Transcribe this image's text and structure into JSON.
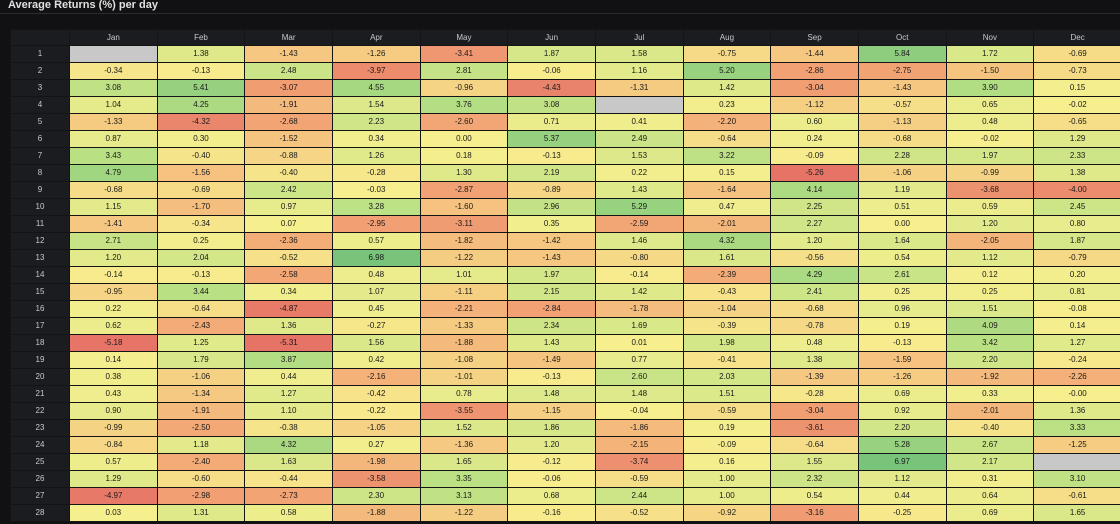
{
  "panel": {
    "title": "Average Returns (%) per day"
  },
  "colors": {
    "background": "#111113",
    "strong_negative": "#e57366",
    "mid_negative": "#f3a675",
    "neutral": "#f7ef8e",
    "mid_positive": "#b9e084",
    "strong_positive": "#77c47a",
    "missing": "#c8c8c8"
  },
  "chart_data": {
    "type": "heatmap",
    "title": "Average Returns (%) per day",
    "x_categories": [
      "Jan",
      "Feb",
      "Mar",
      "Apr",
      "May",
      "Jun",
      "Jul",
      "Aug",
      "Sep",
      "Oct",
      "Nov",
      "Dec"
    ],
    "y_categories": [
      "1",
      "2",
      "3",
      "4",
      "5",
      "6",
      "7",
      "8",
      "9",
      "10",
      "11",
      "12",
      "13",
      "14",
      "15",
      "16",
      "17",
      "18",
      "19",
      "20",
      "21",
      "22",
      "23",
      "24",
      "25",
      "26",
      "27",
      "28"
    ],
    "value_range": [
      -5.31,
      6.98
    ],
    "values": [
      [
        null,
        "1.38",
        "-1.43",
        "-1.26",
        "-3.41",
        "1.87",
        "1.58",
        "-0.75",
        "-1.44",
        "5.84",
        "1.72",
        "-0.69"
      ],
      [
        "-0.34",
        "-0.13",
        "2.48",
        "-3.97",
        "2.81",
        "-0.06",
        "1.16",
        "5.20",
        "-2.86",
        "-2.75",
        "-1.50",
        "-0.73"
      ],
      [
        "3.08",
        "5.41",
        "-3.07",
        "4.55",
        "-0.96",
        "-4.43",
        "-1.31",
        "1.42",
        "-3.04",
        "-1.43",
        "3.90",
        "0.15"
      ],
      [
        "1.04",
        "4.25",
        "-1.91",
        "1.54",
        "3.76",
        "3.08",
        null,
        "0.23",
        "-1.12",
        "-0.57",
        "0.65",
        "-0.02"
      ],
      [
        "-1.33",
        "-4.32",
        "-2.68",
        "2.23",
        "-2.60",
        "0.71",
        "0.41",
        "-2.20",
        "0.60",
        "-1.13",
        "0.48",
        "-0.65"
      ],
      [
        "0.87",
        "0.30",
        "-1.52",
        "0.34",
        "0.00",
        "5.37",
        "2.49",
        "-0.64",
        "0.24",
        "-0.68",
        "-0.02",
        "1.29"
      ],
      [
        "3.43",
        "-0.40",
        "-0.88",
        "1.26",
        "0.18",
        "-0.13",
        "1.53",
        "3.22",
        "-0.09",
        "2.28",
        "1.97",
        "2.33"
      ],
      [
        "4.79",
        "-1.56",
        "-0.40",
        "-0.28",
        "1.30",
        "2.19",
        "0.22",
        "0.15",
        "-5.26",
        "-1.06",
        "-0.99",
        "1.38"
      ],
      [
        "-0.68",
        "-0.69",
        "2.42",
        "-0.03",
        "-2.87",
        "-0.89",
        "1.43",
        "-1.64",
        "4.14",
        "1.19",
        "-3.68",
        "-4.00"
      ],
      [
        "1.15",
        "-1.70",
        "0.97",
        "3.28",
        "-1.60",
        "2.96",
        "5.29",
        "0.47",
        "2.25",
        "0.51",
        "0.59",
        "2.45"
      ],
      [
        "-1.41",
        "-0.34",
        "0.07",
        "-2.95",
        "-3.11",
        "0.35",
        "-2.59",
        "-2.01",
        "2.27",
        "0.00",
        "1.20",
        "0.80"
      ],
      [
        "2.71",
        "0.25",
        "-2.36",
        "0.57",
        "-1.82",
        "-1.42",
        "1.46",
        "4.32",
        "1.20",
        "1.64",
        "-2.05",
        "1.87"
      ],
      [
        "1.20",
        "2.04",
        "-0.52",
        "6.98",
        "-1.22",
        "-1.43",
        "-0.80",
        "1.61",
        "-0.56",
        "0.54",
        "1.12",
        "-0.79"
      ],
      [
        "-0.14",
        "-0.13",
        "-2.58",
        "0.48",
        "1.01",
        "1.97",
        "-0.14",
        "-2.39",
        "4.29",
        "2.61",
        "0.12",
        "0.20"
      ],
      [
        "-0.95",
        "3.44",
        "0.34",
        "1.07",
        "-1.11",
        "2.15",
        "1.42",
        "-0.43",
        "2.41",
        "0.25",
        "0.25",
        "0.81"
      ],
      [
        "0.22",
        "-0.64",
        "-4.87",
        "0.45",
        "-2.21",
        "-2.84",
        "-1.78",
        "-1.04",
        "-0.68",
        "0.96",
        "1.51",
        "-0.08"
      ],
      [
        "0.62",
        "-2.43",
        "1.36",
        "-0.27",
        "-1.33",
        "2.34",
        "1.69",
        "-0.39",
        "-0.78",
        "0.19",
        "4.09",
        "0.14"
      ],
      [
        "-5.18",
        "1.25",
        "-5.31",
        "1.56",
        "-1.88",
        "1.43",
        "0.01",
        "1.98",
        "0.48",
        "-0.13",
        "3.42",
        "1.27"
      ],
      [
        "0.14",
        "1.79",
        "3.87",
        "0.42",
        "-1.08",
        "-1.49",
        "0.77",
        "-0.41",
        "1.38",
        "-1.59",
        "2.20",
        "-0.24"
      ],
      [
        "0.38",
        "-1.06",
        "0.44",
        "-2.16",
        "-1.01",
        "-0.13",
        "2.60",
        "2.03",
        "-1.39",
        "-1.26",
        "-1.92",
        "-2.26"
      ],
      [
        "0.43",
        "-1.34",
        "1.27",
        "-0.42",
        "0.78",
        "1.48",
        "1.48",
        "1.51",
        "-0.28",
        "0.69",
        "0.33",
        "-0.00"
      ],
      [
        "0.90",
        "-1.91",
        "1.10",
        "-0.22",
        "-3.55",
        "-1.15",
        "-0.04",
        "-0.59",
        "-3.04",
        "0.92",
        "-2.01",
        "1.36"
      ],
      [
        "-0.99",
        "-2.50",
        "-0.38",
        "-1.05",
        "1.52",
        "1.86",
        "-1.86",
        "0.19",
        "-3.61",
        "2.20",
        "-0.40",
        "3.33"
      ],
      [
        "-0.84",
        "1.18",
        "4.32",
        "0.27",
        "-1.36",
        "1.20",
        "-2.15",
        "-0.09",
        "-0.64",
        "5.28",
        "2.67",
        "-1.25"
      ],
      [
        "0.57",
        "-2.40",
        "1.63",
        "-1.98",
        "1.65",
        "-0.12",
        "-3.74",
        "0.16",
        "1.55",
        "6.97",
        "2.17",
        null
      ],
      [
        "1.29",
        "-0.60",
        "-0.44",
        "-3.58",
        "3.35",
        "-0.06",
        "-0.59",
        "1.00",
        "2.32",
        "1.12",
        "0.31",
        "3.10"
      ],
      [
        "-4.97",
        "-2.98",
        "-2.73",
        "2.30",
        "3.13",
        "0.68",
        "2.44",
        "1.00",
        "0.54",
        "0.44",
        "0.64",
        "-0.61"
      ],
      [
        "0.03",
        "1.31",
        "0.58",
        "-1.88",
        "-1.22",
        "-0.16",
        "-0.52",
        "-0.92",
        "-3.16",
        "-0.25",
        "0.69",
        "1.65"
      ]
    ]
  }
}
